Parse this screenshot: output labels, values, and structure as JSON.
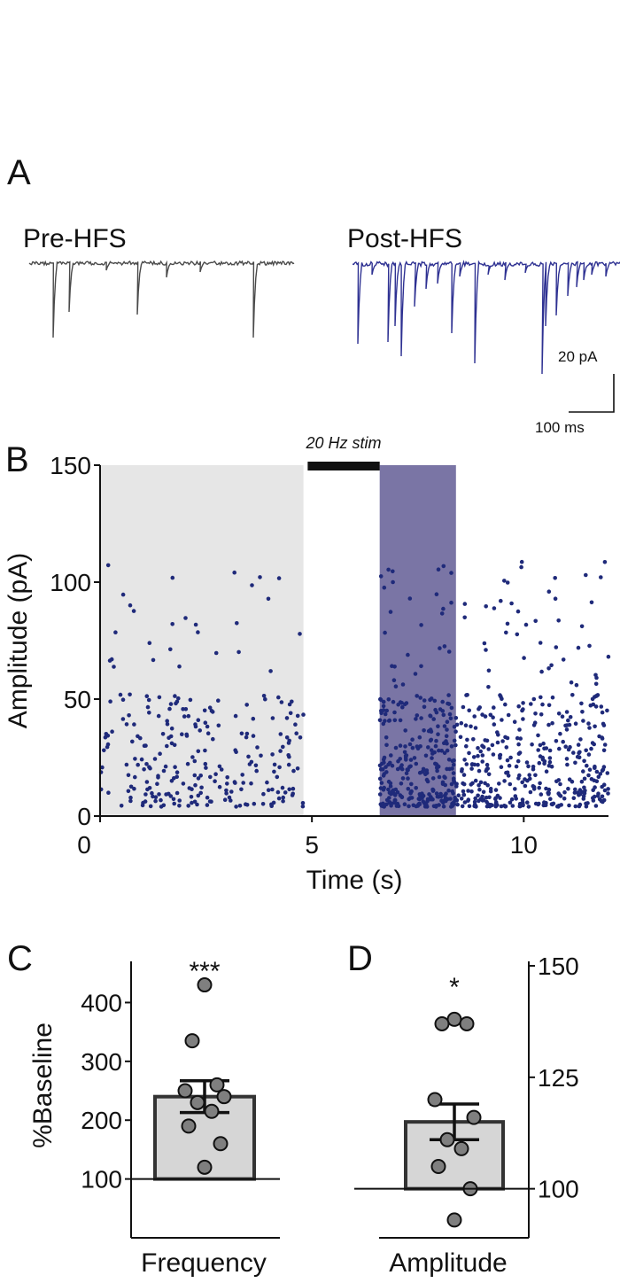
{
  "panels": {
    "a": "A",
    "b": "B",
    "c": "C",
    "d": "D"
  },
  "traces": {
    "pre_label": "Pre-HFS",
    "post_label": "Post-HFS",
    "pre_color": "#4a4a4a",
    "post_color": "#2e3192",
    "scale_amplitude": "20 pA",
    "scale_time": "100 ms"
  },
  "colors": {
    "dot": "#1f2a7a",
    "baseline_region": "#e6e6e6",
    "post_region": "#7a75a5",
    "stim_bar": "#111111",
    "bar_fill": "#d6d6d6",
    "point_fill": "#7f7f7f"
  },
  "chart_data": [
    {
      "type": "scatter",
      "title": "",
      "xlabel": "Time (s)",
      "ylabel": "Amplitude (pA)",
      "xlim": [
        0,
        12
      ],
      "ylim": [
        0,
        150
      ],
      "xticks": [
        "0",
        "5",
        "10"
      ],
      "yticks": [
        "0",
        "50",
        "100",
        "150"
      ],
      "stim_label": "20 Hz stim",
      "stim_interval": [
        4.9,
        6.6
      ],
      "baseline_region": [
        0,
        4.8
      ],
      "post_region": [
        6.6,
        8.4
      ],
      "series": [
        {
          "name": "events",
          "segments": [
            {
              "start": 0,
              "end": 4.8,
              "rate": 55,
              "outlier_fraction": 0.08
            },
            {
              "start": 6.6,
              "end": 8.4,
              "rate": 170,
              "outlier_fraction": 0.12
            },
            {
              "start": 8.4,
              "end": 12,
              "rate": 115,
              "outlier_fraction": 0.1
            }
          ]
        }
      ]
    },
    {
      "type": "bar",
      "title": "",
      "categories": [
        "Frequency"
      ],
      "values": [
        240
      ],
      "sem": [
        27
      ],
      "ylabel": "%Baseline",
      "ylim": [
        0,
        470
      ],
      "yticks": [
        "100",
        "200",
        "300",
        "400"
      ],
      "reference": 100,
      "points": [
        430,
        335,
        260,
        250,
        240,
        230,
        215,
        190,
        160,
        120
      ],
      "significance": "***"
    },
    {
      "type": "bar",
      "title": "",
      "categories": [
        "Amplitude"
      ],
      "values": [
        115
      ],
      "sem": [
        4
      ],
      "ylabel": "",
      "ylim": [
        89,
        151
      ],
      "yticks": [
        "100",
        "125",
        "150"
      ],
      "reference": 100,
      "points": [
        138,
        137,
        137,
        120,
        116,
        111,
        109,
        105,
        100,
        93
      ],
      "significance": "*"
    }
  ]
}
